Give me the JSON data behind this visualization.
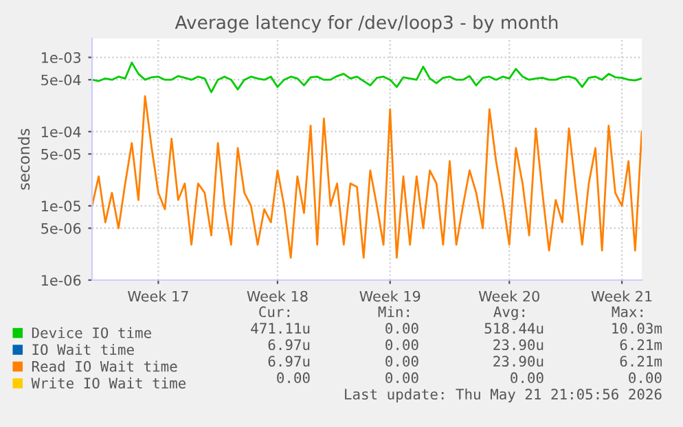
{
  "chart_data": {
    "type": "line",
    "title": "Average latency for /dev/loop3 - by month",
    "ylabel": "seconds",
    "log": "y",
    "grid": true,
    "legend": "bottom",
    "categories": [
      null,
      null,
      null,
      null,
      null,
      null,
      null,
      null,
      null,
      null,
      "Week 17",
      null,
      null,
      null,
      null,
      null,
      null,
      null,
      null,
      null,
      null,
      null,
      null,
      null,
      null,
      null,
      null,
      null,
      "Week 18",
      null,
      null,
      null,
      null,
      null,
      null,
      null,
      null,
      null,
      null,
      null,
      null,
      null,
      null,
      null,
      null,
      "Week 19",
      null,
      null,
      null,
      null,
      null,
      null,
      null,
      null,
      null,
      null,
      null,
      null,
      null,
      null,
      null,
      null,
      null,
      "Week 20",
      null,
      null,
      null,
      null,
      null,
      null,
      null,
      null,
      null,
      null,
      null,
      null,
      null,
      null,
      null,
      null,
      "Week 21",
      null,
      null,
      null
    ],
    "ylim": [
      1e-06,
      0.0018
    ],
    "yticks": [
      {
        "value": 0.001,
        "label": "1e-03"
      },
      {
        "value": 0.0005,
        "label": "5e-04"
      },
      {
        "value": 0.0001,
        "label": "1e-04"
      },
      {
        "value": 5e-05,
        "label": "5e-05"
      },
      {
        "value": 1e-05,
        "label": "1e-05"
      },
      {
        "value": 5e-06,
        "label": "5e-06"
      },
      {
        "value": 1e-06,
        "label": "1e-06"
      }
    ],
    "series": [
      {
        "name": "Device IO time",
        "color": "#00cc00",
        "values": [
          0.0005,
          0.00048,
          0.00052,
          0.0005,
          0.00055,
          0.00052,
          0.00085,
          0.0006,
          0.0005,
          0.00054,
          0.00055,
          0.0005,
          0.0005,
          0.00056,
          0.00053,
          0.0005,
          0.00055,
          0.00052,
          0.00034,
          0.0005,
          0.00055,
          0.0005,
          0.00037,
          0.0005,
          0.00055,
          0.00052,
          0.0005,
          0.00055,
          0.0004,
          0.0005,
          0.00055,
          0.00052,
          0.00042,
          0.00054,
          0.00055,
          0.0005,
          0.0005,
          0.00056,
          0.0006,
          0.00052,
          0.00055,
          0.00048,
          0.00042,
          0.00053,
          0.00055,
          0.0005,
          0.0004,
          0.00054,
          0.00052,
          0.0005,
          0.00075,
          0.00052,
          0.00045,
          0.00053,
          0.00055,
          0.0005,
          0.0005,
          0.00056,
          0.00042,
          0.00053,
          0.00055,
          0.0005,
          0.00055,
          0.00052,
          0.0007,
          0.00055,
          0.0005,
          0.00052,
          0.00053,
          0.0005,
          0.0005,
          0.00054,
          0.00055,
          0.00052,
          0.0004,
          0.00053,
          0.00055,
          0.0005,
          0.0006,
          0.00054,
          0.00053,
          0.0005,
          0.00049,
          0.00052
        ]
      },
      {
        "name": "IO Wait time",
        "color": "#0066b3",
        "values": [
          null,
          null,
          null,
          null,
          null,
          null,
          null,
          null,
          null,
          null,
          null,
          null,
          null,
          null,
          null,
          null,
          null,
          null,
          null,
          null,
          null,
          null,
          null,
          null,
          null,
          null,
          null,
          null,
          null,
          null,
          null,
          null,
          null,
          null,
          null,
          null,
          null,
          null,
          null,
          null,
          null,
          null,
          null,
          null,
          null,
          null,
          null,
          null,
          null,
          null,
          null,
          null,
          null,
          null,
          null,
          null,
          null,
          null,
          null,
          null,
          null,
          null,
          null,
          null,
          null,
          null,
          null,
          null,
          null,
          null,
          null,
          null,
          null,
          null,
          null,
          null,
          null,
          null,
          null,
          null,
          null,
          null,
          null,
          null
        ]
      },
      {
        "name": "Read IO Wait time",
        "color": "#ff8000",
        "values": [
          1e-05,
          2.5e-05,
          6e-06,
          1.5e-05,
          5e-06,
          2e-05,
          7e-05,
          1.2e-05,
          0.0003,
          6e-05,
          1.5e-05,
          9e-06,
          8e-05,
          1.2e-05,
          2e-05,
          3e-06,
          2e-05,
          1.5e-05,
          4e-06,
          7e-05,
          1e-05,
          3e-06,
          6e-05,
          1.5e-05,
          1e-05,
          3e-06,
          9e-06,
          6e-06,
          3e-05,
          1e-05,
          2e-06,
          2.5e-05,
          8e-06,
          0.00012,
          3e-06,
          0.00015,
          1e-05,
          2e-05,
          3e-06,
          2e-05,
          1.8e-05,
          2e-06,
          3e-05,
          1e-05,
          3e-06,
          0.0002,
          2e-06,
          2.5e-05,
          3e-06,
          2.5e-05,
          5e-06,
          3e-05,
          2e-05,
          3e-06,
          4e-05,
          3e-06,
          1e-05,
          3e-05,
          1.5e-05,
          5e-06,
          0.0002,
          4e-05,
          1.2e-05,
          3e-06,
          6e-05,
          2e-05,
          4e-06,
          0.00011,
          1.5e-05,
          2.5e-06,
          1.2e-05,
          6e-06,
          0.00011,
          1.8e-05,
          3e-06,
          2e-05,
          6e-05,
          2.5e-06,
          0.00012,
          1.5e-05,
          1e-05,
          4e-05,
          2.5e-06,
          0.0001
        ]
      },
      {
        "name": "Write IO Wait time",
        "color": "#ffcc00",
        "values": [
          null,
          null,
          null,
          null,
          null,
          null,
          null,
          null,
          null,
          null,
          null,
          null,
          null,
          null,
          null,
          null,
          null,
          null,
          null,
          null,
          null,
          null,
          null,
          null,
          null,
          null,
          null,
          null,
          null,
          null,
          null,
          null,
          null,
          null,
          null,
          null,
          null,
          null,
          null,
          null,
          null,
          null,
          null,
          null,
          null,
          null,
          null,
          null,
          null,
          null,
          null,
          null,
          null,
          null,
          null,
          null,
          null,
          null,
          null,
          null,
          null,
          null,
          null,
          null,
          null,
          null,
          null,
          null,
          null,
          null,
          null,
          null,
          null,
          null,
          null,
          null,
          null,
          null,
          null,
          null,
          null,
          null,
          null,
          null
        ]
      }
    ],
    "annotations": [
      "Cur:",
      "Min:",
      "Avg:",
      "Max:",
      "471.11u",
      "0.00",
      "518.44u",
      "10.03m",
      "6.97u",
      "0.00",
      "23.90u",
      "6.21m",
      "6.97u",
      "0.00",
      "23.90u",
      "6.21m",
      "0.00",
      "0.00",
      "0.00",
      "0.00",
      "Last update: Thu May 21 21:05:56 2026"
    ]
  }
}
